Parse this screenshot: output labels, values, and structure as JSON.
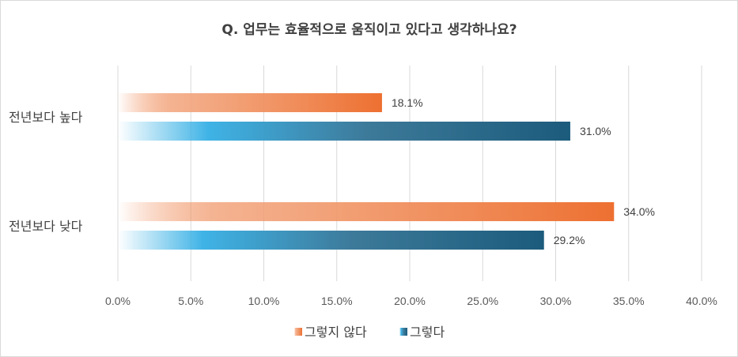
{
  "chart_data": {
    "type": "bar",
    "orientation": "horizontal",
    "title": "Q. 업무는 효율적으로 움직이고 있다고 생각하나요?",
    "categories": [
      "전년보다 높다",
      "전년보다 낮다"
    ],
    "series": [
      {
        "name": "그렇지 않다",
        "values": [
          18.1,
          34.0
        ],
        "value_labels": [
          "18.1%",
          "34.0%"
        ],
        "color": "#ED7031"
      },
      {
        "name": "그렇다",
        "values": [
          31.0,
          29.2
        ],
        "value_labels": [
          "31.0%",
          "29.2%"
        ],
        "color": "#1C5B7C"
      }
    ],
    "xlim": [
      0,
      40
    ],
    "x_ticks": [
      0,
      5,
      10,
      15,
      20,
      25,
      30,
      35,
      40
    ],
    "x_tick_labels": [
      "0.0%",
      "5.0%",
      "10.0%",
      "15.0%",
      "20.0%",
      "25.0%",
      "30.0%",
      "35.0%",
      "40.0%"
    ],
    "grid": true,
    "legend_position": "bottom"
  }
}
